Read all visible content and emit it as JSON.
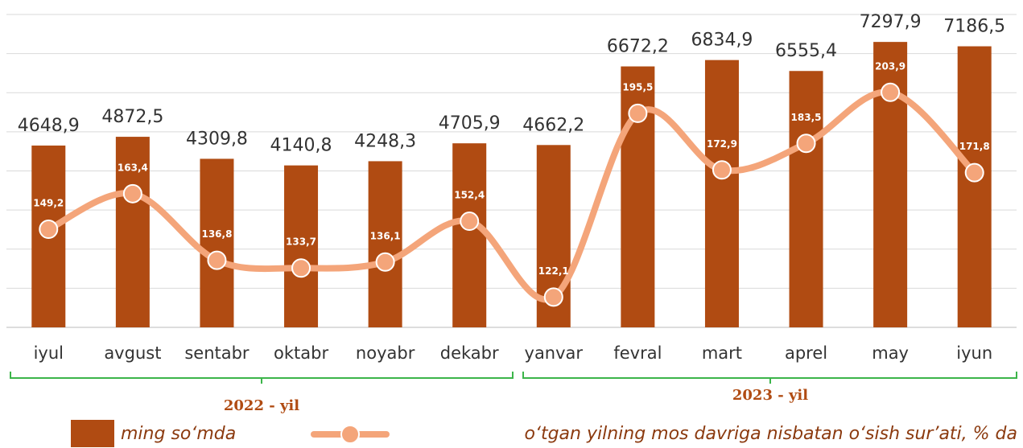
{
  "chart_data": {
    "type": "combo",
    "categories": [
      "iyul",
      "avgust",
      "sentabr",
      "oktabr",
      "noyabr",
      "dekabr",
      "yanvar",
      "fevral",
      "mart",
      "aprel",
      "may",
      "iyun"
    ],
    "series": [
      {
        "name": "ming so‘mda",
        "type": "bar",
        "color": "#b04b12",
        "values": [
          4648.9,
          4872.5,
          4309.8,
          4140.8,
          4248.3,
          4705.9,
          4662.2,
          6672.2,
          6834.9,
          6555.4,
          7297.9,
          7186.5
        ],
        "value_labels": [
          "4648,9",
          "4872,5",
          "4309,8",
          "4140,8",
          "4248,3",
          "4705,9",
          "4662,2",
          "6672,2",
          "6834,9",
          "6555,4",
          "7297,9",
          "7186,5"
        ]
      },
      {
        "name": "o‘tgan yilning mos davriga nisbatan o‘sish sur’ati, % da",
        "type": "line",
        "axis": "y2",
        "color": "#f4a57a",
        "values": [
          149.2,
          163.4,
          136.8,
          133.7,
          136.1,
          152.4,
          122.1,
          195.5,
          172.9,
          183.5,
          203.9,
          171.8
        ],
        "value_labels": [
          "149,2",
          "163,4",
          "136,8",
          "133,7",
          "136,1",
          "152,4",
          "122,1",
          "195,5",
          "172,9",
          "183,5",
          "203,9",
          "171,8"
        ]
      }
    ],
    "ylim": [
      0,
      8000
    ],
    "yticks": [
      0,
      1000,
      2000,
      3000,
      4000,
      5000,
      6000,
      7000,
      8000
    ],
    "y2lim": [
      110,
      235
    ],
    "grid": true,
    "annotations": [
      "2022 - yil",
      "2023 - yil"
    ]
  }
}
